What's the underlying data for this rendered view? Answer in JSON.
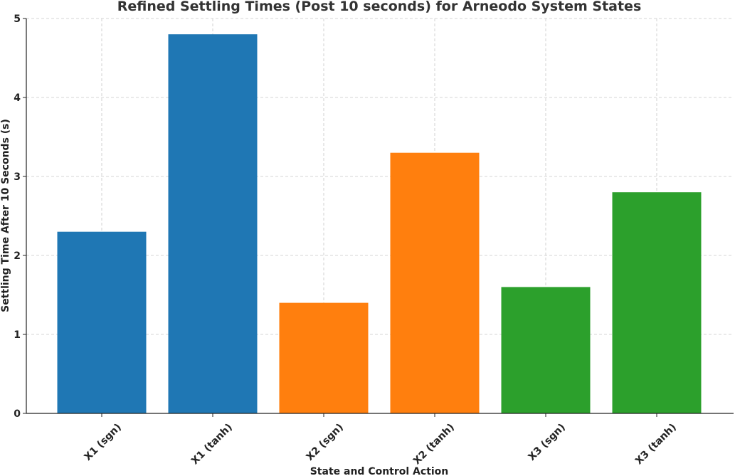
{
  "chart_data": {
    "type": "bar",
    "title": "Refined Settling Times (Post 10 seconds) for Arneodo System States",
    "xlabel": "State and Control Action",
    "ylabel": "Settling Time After 10 Seconds (s)",
    "categories": [
      "X1 (sgn)",
      "X1 (tanh)",
      "X2 (sgn)",
      "X2 (tanh)",
      "X3 (sgn)",
      "X3 (tanh)"
    ],
    "values": [
      2.3,
      4.8,
      1.4,
      3.3,
      1.6,
      2.8
    ],
    "colors": [
      "#1f77b4",
      "#1f77b4",
      "#ff7f0e",
      "#ff7f0e",
      "#2ca02c",
      "#2ca02c"
    ],
    "ylim": [
      0,
      5
    ],
    "yticks": [
      "0",
      "1",
      "2",
      "3",
      "4",
      "5"
    ],
    "grid": true,
    "legend": "none"
  }
}
